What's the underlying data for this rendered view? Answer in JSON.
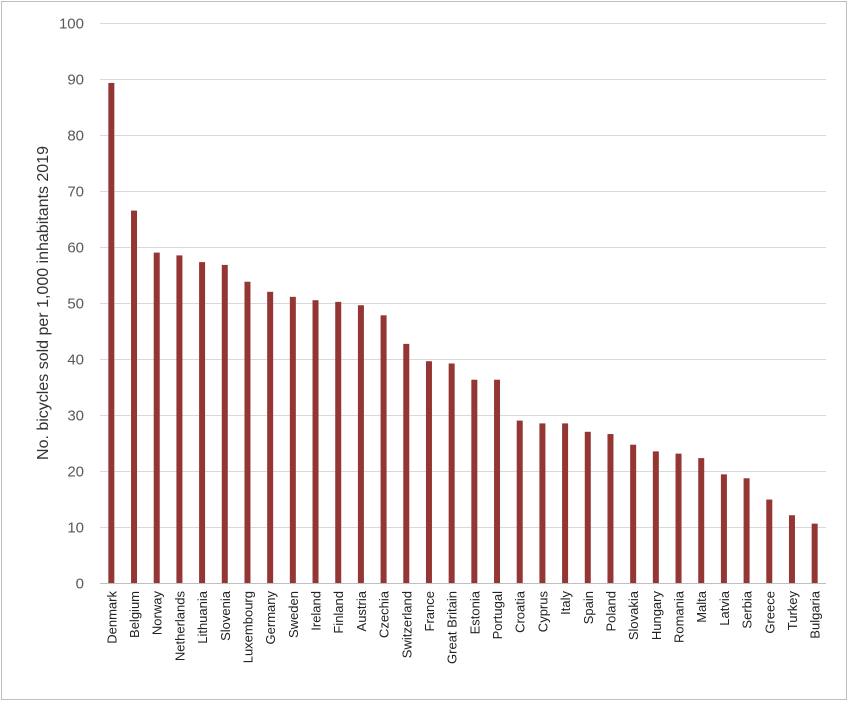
{
  "chart_data": {
    "type": "bar",
    "title": "",
    "xlabel": "",
    "ylabel": "No. bicycles sold per 1,000 inhabitants 2019",
    "ylim": [
      0,
      100
    ],
    "yticks": [
      0,
      10,
      20,
      30,
      40,
      50,
      60,
      70,
      80,
      90,
      100
    ],
    "grid": true,
    "legend": "none",
    "bar_color": "#943634",
    "categories": [
      "Denmark",
      "Belgium",
      "Norway",
      "Netherlands",
      "Lithuania",
      "Slovenia",
      "Luxembourg",
      "Germany",
      "Sweden",
      "Ireland",
      "Finland",
      "Austria",
      "Czechia",
      "Switzerland",
      "France",
      "Great Britain",
      "Estonia",
      "Portugal",
      "Croatia",
      "Cyprus",
      "Italy",
      "Spain",
      "Poland",
      "Slovakia",
      "Hungary",
      "Romania",
      "Malta",
      "Latvia",
      "Serbia",
      "Greece",
      "Turkey",
      "Bulgaria"
    ],
    "values": [
      89.3,
      66.5,
      59.0,
      58.5,
      57.3,
      56.8,
      53.8,
      52.0,
      51.1,
      50.5,
      50.2,
      49.6,
      47.8,
      42.7,
      39.6,
      39.2,
      36.3,
      36.3,
      29.0,
      28.5,
      28.5,
      27.0,
      26.6,
      24.7,
      23.5,
      23.1,
      22.3,
      19.4,
      18.7,
      14.9,
      12.1,
      10.6
    ]
  }
}
